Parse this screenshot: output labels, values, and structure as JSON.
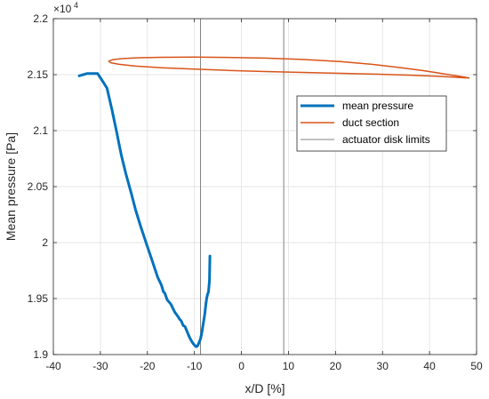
{
  "chart_data": {
    "type": "line",
    "xlabel": "x/D [%]",
    "ylabel": "Mean pressure [Pa]",
    "y_exponent_label": "×10",
    "y_exponent": "4",
    "xlim": [
      -40,
      50
    ],
    "ylim": [
      19000,
      22000
    ],
    "x_ticks": [
      -40,
      -30,
      -20,
      -10,
      0,
      10,
      20,
      30,
      40,
      50
    ],
    "x_tick_labels": [
      "-40",
      "-30",
      "-20",
      "-10",
      "0",
      "10",
      "20",
      "30",
      "40",
      "50"
    ],
    "y_ticks": [
      19000,
      19500,
      20000,
      20500,
      21000,
      21500,
      22000
    ],
    "y_tick_labels": [
      "1.9",
      "1.95",
      "2",
      "2.05",
      "2.1",
      "2.15",
      "2.2"
    ],
    "grid": true,
    "legend_position": "top-right",
    "colors": {
      "mean_pressure": "#0072BD",
      "duct_section": "#D95319",
      "actuator_disk": "#808080",
      "grid": "#e6e6e6",
      "axes": "#262626"
    },
    "series": [
      {
        "name": "mean pressure",
        "x": [
          -34.5,
          -32.8,
          -31.6,
          -30.6,
          -29.8,
          -28.6,
          -27.5,
          -26.5,
          -25.6,
          -24.6,
          -23.5,
          -22.5,
          -21.4,
          -20.2,
          -19.0,
          -17.8,
          -17.0,
          -16.6,
          -16.3,
          -15.8,
          -15.0,
          -14.2,
          -13.5,
          -13.2,
          -12.8,
          -12.4,
          -12.0,
          -11.5,
          -11.0,
          -10.6,
          -10.3,
          -9.9,
          -9.6,
          -9.3,
          -9.0,
          -8.7,
          -8.4,
          -8.1,
          -7.8,
          -7.6,
          -7.4,
          -7.2,
          -7.0,
          -6.8,
          -6.7
        ],
        "y": [
          21490,
          21510,
          21510,
          21510,
          21460,
          21380,
          21180,
          20980,
          20790,
          20620,
          20450,
          20290,
          20140,
          19990,
          19840,
          19690,
          19620,
          19560,
          19550,
          19490,
          19450,
          19380,
          19340,
          19320,
          19300,
          19260,
          19250,
          19200,
          19150,
          19120,
          19100,
          19080,
          19070,
          19080,
          19110,
          19140,
          19200,
          19280,
          19360,
          19440,
          19500,
          19540,
          19560,
          19660,
          19880
        ]
      },
      {
        "name": "duct section",
        "x": [
          -28.3,
          -27.4,
          -25.5,
          -22.0,
          -17.0,
          -10.0,
          -3.0,
          5.0,
          13.0,
          21.0,
          28.0,
          34.0,
          38.7,
          42.2,
          45.0,
          47.0,
          48.4,
          46.5,
          42.0,
          36.0,
          29.0,
          21.0,
          13.0,
          5.0,
          -3.0,
          -10.0,
          -17.0,
          -22.5,
          -26.0,
          -27.8,
          -28.3
        ],
        "y": [
          21620,
          21633,
          21643,
          21651,
          21655,
          21656,
          21654,
          21648,
          21636,
          21617,
          21591,
          21562,
          21536,
          21513,
          21494,
          21481,
          21471,
          21475,
          21485,
          21495,
          21504,
          21512,
          21520,
          21528,
          21538,
          21549,
          21562,
          21576,
          21592,
          21606,
          21620
        ]
      },
      {
        "name": "actuator disk limits",
        "x_positions": [
          -8.7,
          9.0
        ]
      }
    ]
  }
}
